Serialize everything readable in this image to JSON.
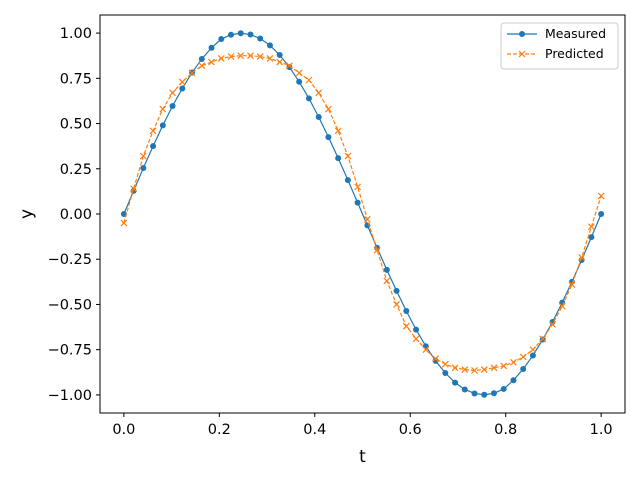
{
  "chart_data": {
    "type": "line",
    "xlabel": "t",
    "ylabel": "y",
    "xlim": [
      -0.05,
      1.05
    ],
    "ylim": [
      -1.1,
      1.1
    ],
    "x_ticks": [
      0.0,
      0.2,
      0.4,
      0.6,
      0.8,
      1.0
    ],
    "x_tick_labels": [
      "0.0",
      "0.2",
      "0.4",
      "0.6",
      "0.8",
      "1.0"
    ],
    "y_ticks": [
      1.0,
      0.75,
      0.5,
      0.25,
      0.0,
      -0.25,
      -0.5,
      -0.75,
      -1.0
    ],
    "y_tick_labels": [
      "1.00",
      "0.75",
      "0.50",
      "0.25",
      "0.00",
      "−0.25",
      "−0.50",
      "−0.75",
      "−1.00"
    ],
    "grid": false,
    "legend_position": "top-right",
    "series": [
      {
        "name": "Measured",
        "color": "#1f77b4",
        "marker": "circle",
        "linestyle": "solid",
        "x": [
          0.0,
          0.0204,
          0.0408,
          0.0612,
          0.0816,
          0.102,
          0.1224,
          0.1429,
          0.1633,
          0.1837,
          0.2041,
          0.2245,
          0.2449,
          0.2653,
          0.2857,
          0.3061,
          0.3265,
          0.3469,
          0.3673,
          0.3878,
          0.4082,
          0.4286,
          0.449,
          0.4694,
          0.4898,
          0.5102,
          0.5306,
          0.551,
          0.5714,
          0.5918,
          0.6122,
          0.6327,
          0.6531,
          0.6735,
          0.6939,
          0.7143,
          0.7347,
          0.7551,
          0.7755,
          0.7959,
          0.8163,
          0.8367,
          0.8571,
          0.8776,
          0.898,
          0.9184,
          0.9388,
          0.9592,
          0.9796,
          1.0
        ],
        "y": [
          0.0,
          0.128,
          0.254,
          0.375,
          0.49,
          0.597,
          0.694,
          0.782,
          0.857,
          0.919,
          0.967,
          0.991,
          0.999,
          0.992,
          0.97,
          0.932,
          0.879,
          0.812,
          0.731,
          0.639,
          0.536,
          0.425,
          0.309,
          0.187,
          0.063,
          -0.063,
          -0.187,
          -0.309,
          -0.425,
          -0.536,
          -0.639,
          -0.731,
          -0.812,
          -0.879,
          -0.932,
          -0.97,
          -0.992,
          -0.999,
          -0.991,
          -0.967,
          -0.919,
          -0.857,
          -0.782,
          -0.694,
          -0.597,
          -0.49,
          -0.375,
          -0.254,
          -0.128,
          0.0
        ]
      },
      {
        "name": "Predicted",
        "color": "#ff7f0e",
        "marker": "x",
        "linestyle": "dashed",
        "x": [
          0.0,
          0.0204,
          0.0408,
          0.0612,
          0.0816,
          0.102,
          0.1224,
          0.1429,
          0.1633,
          0.1837,
          0.2041,
          0.2245,
          0.2449,
          0.2653,
          0.2857,
          0.3061,
          0.3265,
          0.3469,
          0.3673,
          0.3878,
          0.4082,
          0.4286,
          0.449,
          0.4694,
          0.4898,
          0.5102,
          0.5306,
          0.551,
          0.5714,
          0.5918,
          0.6122,
          0.6327,
          0.6531,
          0.6735,
          0.6939,
          0.7143,
          0.7347,
          0.7551,
          0.7755,
          0.7959,
          0.8163,
          0.8367,
          0.8571,
          0.8776,
          0.898,
          0.9184,
          0.9388,
          0.9592,
          0.9796,
          1.0
        ],
        "y": [
          -0.05,
          0.14,
          0.32,
          0.46,
          0.58,
          0.67,
          0.73,
          0.78,
          0.82,
          0.84,
          0.86,
          0.87,
          0.875,
          0.875,
          0.87,
          0.86,
          0.84,
          0.82,
          0.78,
          0.74,
          0.67,
          0.58,
          0.46,
          0.32,
          0.15,
          -0.03,
          -0.2,
          -0.37,
          -0.5,
          -0.62,
          -0.69,
          -0.75,
          -0.8,
          -0.83,
          -0.85,
          -0.86,
          -0.865,
          -0.86,
          -0.85,
          -0.84,
          -0.82,
          -0.79,
          -0.75,
          -0.69,
          -0.61,
          -0.51,
          -0.39,
          -0.24,
          -0.07,
          0.1
        ]
      }
    ]
  }
}
